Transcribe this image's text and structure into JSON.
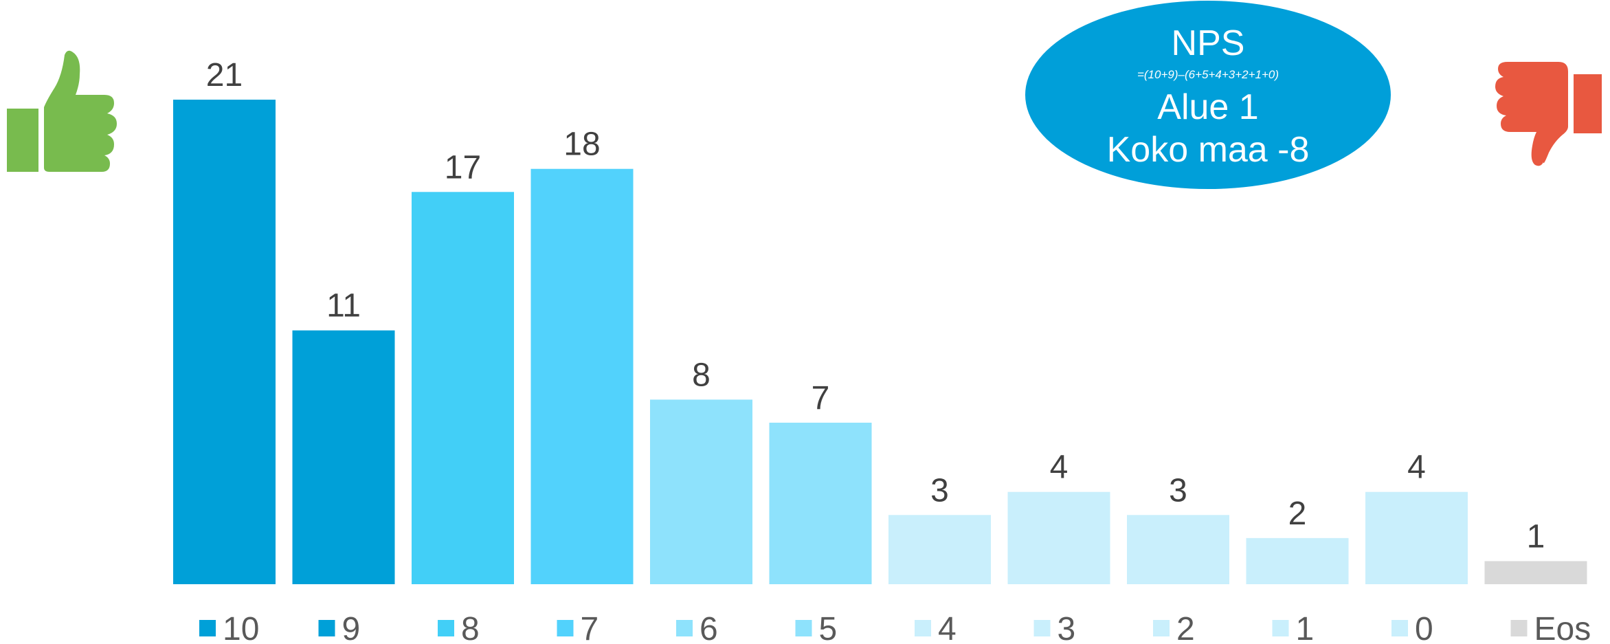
{
  "chart_data": {
    "type": "bar",
    "categories": [
      "10",
      "9",
      "8",
      "7",
      "6",
      "5",
      "4",
      "3",
      "2",
      "1",
      "0",
      "Eos"
    ],
    "values": [
      21,
      11,
      17,
      18,
      8,
      7,
      3,
      4,
      3,
      2,
      4,
      1
    ],
    "colors": [
      "#00a0d8",
      "#00a0d8",
      "#42cff7",
      "#52d2fc",
      "#8ee2fc",
      "#8ee2fc",
      "#c9effc",
      "#c9effc",
      "#c9effc",
      "#c9effc",
      "#c9effc",
      "#d9d9d9"
    ],
    "ylim": [
      0,
      21
    ],
    "grid": false,
    "legend_position": "bottom"
  },
  "nps_box": {
    "title": "NPS",
    "formula": "=(10+9)–(6+5+4+3+2+1+0)",
    "line_area": "Alue 1",
    "line_country": "Koko maa -8",
    "color": "#009fd9"
  },
  "icons": {
    "promoter": "thumbs-up-icon",
    "promoter_color": "#78bb4e",
    "detractor": "thumbs-down-icon",
    "detractor_color": "#e85840"
  }
}
